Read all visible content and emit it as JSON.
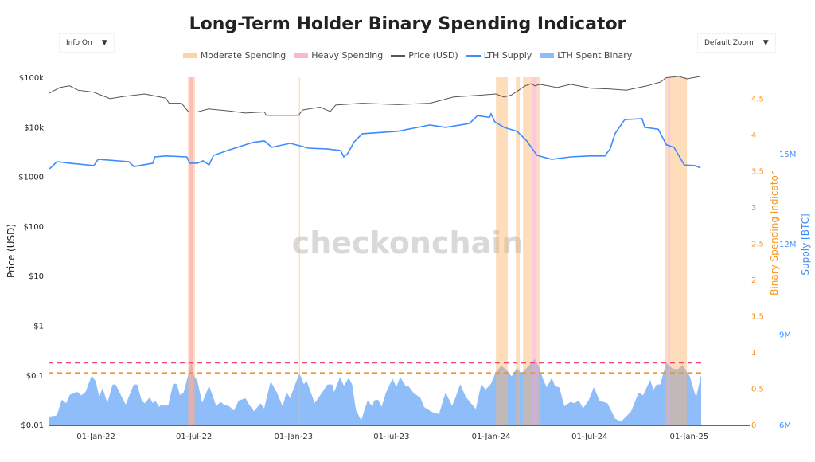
{
  "title": "Long-Term Holder Binary Spending Indicator",
  "controls": {
    "info_label": "Info On",
    "zoom_label": "Default Zoom",
    "caret": "▼"
  },
  "legend": [
    {
      "label": "Moderate Spending",
      "color": "#fcd3a5"
    },
    {
      "label": "Heavy Spending",
      "color": "#f9b8cb"
    },
    {
      "label": "Price (USD)",
      "color": "#555555"
    },
    {
      "label": "LTH Supply",
      "color": "#3d8bfd"
    },
    {
      "label": "LTH Spent Binary",
      "color": "#8fbdfa"
    }
  ],
  "watermark": "checkonchain",
  "chart_data": {
    "type": "line",
    "title": "Long-Term Holder Binary Spending Indicator",
    "x_unit": "days since 2022-01-01",
    "x_range": [
      -88,
      1118
    ],
    "x_ticks": [
      {
        "day": 0,
        "label": "01-Jan-22"
      },
      {
        "day": 181,
        "label": "01-Jul-22"
      },
      {
        "day": 365,
        "label": "01-Jan-23"
      },
      {
        "day": 546,
        "label": "01-Jul-23"
      },
      {
        "day": 730,
        "label": "01-Jan-24"
      },
      {
        "day": 912,
        "label": "01-Jul-24"
      },
      {
        "day": 1096,
        "label": "01-Jan-25"
      }
    ],
    "axes": {
      "price": {
        "label": "Price (USD)",
        "scale": "log",
        "range": [
          0.01,
          100000
        ],
        "ticks": [
          {
            "v": 100000,
            "label": "$100k"
          },
          {
            "v": 10000,
            "label": "$10k"
          },
          {
            "v": 1000,
            "label": "$1000"
          },
          {
            "v": 100,
            "label": "$100"
          },
          {
            "v": 10,
            "label": "$10"
          },
          {
            "v": 1,
            "label": "$1"
          },
          {
            "v": 0.1,
            "label": "$0.1"
          },
          {
            "v": 0.01,
            "label": "$0.01"
          }
        ]
      },
      "binary": {
        "label": "Binary Spending Indicator",
        "range": [
          0,
          4.8
        ],
        "color": "#f7941d",
        "ticks": [
          {
            "v": 0,
            "label": "0"
          },
          {
            "v": 0.5,
            "label": "0.5"
          },
          {
            "v": 1,
            "label": "1"
          },
          {
            "v": 1.5,
            "label": "1.5"
          },
          {
            "v": 2,
            "label": "2"
          },
          {
            "v": 2.5,
            "label": "2.5"
          },
          {
            "v": 3,
            "label": "3"
          },
          {
            "v": 3.5,
            "label": "3.5"
          },
          {
            "v": 4,
            "label": "4"
          },
          {
            "v": 4.5,
            "label": "4.5"
          }
        ]
      },
      "supply": {
        "label": "Supply [BTC]",
        "range_millions": [
          6,
          17.5
        ],
        "color": "#3d8bfd",
        "ticks": [
          {
            "v": 6,
            "label": "6M"
          },
          {
            "v": 9,
            "label": "9M"
          },
          {
            "v": 12,
            "label": "12M"
          },
          {
            "v": 15,
            "label": "15M"
          }
        ]
      }
    },
    "thresholds": [
      {
        "name": "heavy",
        "value": 0.855,
        "color": "#f0476e"
      },
      {
        "name": "moderate",
        "value": 0.71,
        "color": "#f7941d"
      }
    ],
    "moderate_spending_periods": [
      [
        170,
        183
      ],
      [
        375,
        377
      ],
      [
        739,
        761
      ],
      [
        776,
        783
      ],
      [
        789,
        806
      ],
      [
        815,
        820
      ],
      [
        1052,
        1056
      ],
      [
        1061,
        1092
      ]
    ],
    "heavy_spending_periods": [
      [
        173,
        179
      ],
      [
        806,
        815
      ],
      [
        1056,
        1061
      ]
    ],
    "price": [
      [
        -86,
        48000
      ],
      [
        -67,
        62000
      ],
      [
        -49,
        67000
      ],
      [
        -33,
        55000
      ],
      [
        -4,
        50000
      ],
      [
        26,
        37000
      ],
      [
        51,
        41000
      ],
      [
        90,
        46000
      ],
      [
        129,
        38000
      ],
      [
        135,
        30000
      ],
      [
        158,
        30000
      ],
      [
        171,
        20000
      ],
      [
        187,
        20000
      ],
      [
        208,
        23000
      ],
      [
        246,
        21000
      ],
      [
        276,
        19000
      ],
      [
        311,
        20000
      ],
      [
        315,
        17000
      ],
      [
        374,
        17000
      ],
      [
        382,
        22000
      ],
      [
        414,
        25000
      ],
      [
        433,
        20500
      ],
      [
        443,
        27500
      ],
      [
        492,
        30000
      ],
      [
        558,
        28000
      ],
      [
        617,
        30000
      ],
      [
        661,
        40000
      ],
      [
        705,
        43000
      ],
      [
        739,
        46000
      ],
      [
        754,
        40000
      ],
      [
        768,
        44000
      ],
      [
        778,
        52000
      ],
      [
        793,
        67000
      ],
      [
        804,
        74000
      ],
      [
        811,
        67000
      ],
      [
        820,
        72000
      ],
      [
        852,
        62000
      ],
      [
        877,
        72000
      ],
      [
        915,
        60000
      ],
      [
        950,
        58000
      ],
      [
        980,
        55000
      ],
      [
        1018,
        67000
      ],
      [
        1043,
        80000
      ],
      [
        1054,
        98000
      ],
      [
        1077,
        104000
      ],
      [
        1092,
        93000
      ],
      [
        1117,
        104000
      ]
    ],
    "lth_supply_millions": [
      [
        -86,
        14.49
      ],
      [
        -72,
        14.73
      ],
      [
        -48,
        14.68
      ],
      [
        -4,
        14.6
      ],
      [
        4,
        14.81
      ],
      [
        61,
        14.73
      ],
      [
        70,
        14.57
      ],
      [
        105,
        14.68
      ],
      [
        109,
        14.89
      ],
      [
        129,
        14.92
      ],
      [
        168,
        14.89
      ],
      [
        173,
        14.68
      ],
      [
        187,
        14.68
      ],
      [
        198,
        14.76
      ],
      [
        209,
        14.62
      ],
      [
        217,
        14.94
      ],
      [
        246,
        15.12
      ],
      [
        290,
        15.37
      ],
      [
        311,
        15.42
      ],
      [
        325,
        15.21
      ],
      [
        359,
        15.34
      ],
      [
        393,
        15.18
      ],
      [
        428,
        15.15
      ],
      [
        452,
        15.1
      ],
      [
        458,
        14.89
      ],
      [
        465,
        15.0
      ],
      [
        477,
        15.39
      ],
      [
        492,
        15.66
      ],
      [
        558,
        15.74
      ],
      [
        617,
        15.95
      ],
      [
        646,
        15.87
      ],
      [
        690,
        16.0
      ],
      [
        705,
        16.26
      ],
      [
        727,
        16.2
      ],
      [
        730,
        16.32
      ],
      [
        737,
        16.05
      ],
      [
        754,
        15.87
      ],
      [
        778,
        15.74
      ],
      [
        796,
        15.42
      ],
      [
        815,
        14.94
      ],
      [
        842,
        14.81
      ],
      [
        877,
        14.89
      ],
      [
        911,
        14.92
      ],
      [
        940,
        14.92
      ],
      [
        950,
        15.15
      ],
      [
        959,
        15.66
      ],
      [
        977,
        16.13
      ],
      [
        1009,
        16.16
      ],
      [
        1014,
        15.87
      ],
      [
        1039,
        15.81
      ],
      [
        1054,
        15.29
      ],
      [
        1068,
        15.21
      ],
      [
        1087,
        14.62
      ],
      [
        1107,
        14.6
      ],
      [
        1117,
        14.52
      ]
    ],
    "lth_spent_binary": [
      [
        -87,
        0.106
      ],
      [
        -72,
        0.124
      ],
      [
        -63,
        0.34
      ],
      [
        -55,
        0.29
      ],
      [
        -48,
        0.41
      ],
      [
        -35,
        0.45
      ],
      [
        -27,
        0.4
      ],
      [
        -19,
        0.45
      ],
      [
        -8,
        0.67
      ],
      [
        -1,
        0.6
      ],
      [
        6,
        0.37
      ],
      [
        12,
        0.5
      ],
      [
        21,
        0.29
      ],
      [
        31,
        0.55
      ],
      [
        36,
        0.55
      ],
      [
        46,
        0.4
      ],
      [
        55,
        0.27
      ],
      [
        70,
        0.55
      ],
      [
        76,
        0.55
      ],
      [
        84,
        0.33
      ],
      [
        90,
        0.29
      ],
      [
        99,
        0.37
      ],
      [
        105,
        0.29
      ],
      [
        109,
        0.33
      ],
      [
        117,
        0.24
      ],
      [
        120,
        0.27
      ],
      [
        134,
        0.27
      ],
      [
        143,
        0.56
      ],
      [
        149,
        0.56
      ],
      [
        155,
        0.4
      ],
      [
        162,
        0.44
      ],
      [
        171,
        0.69
      ],
      [
        176,
        0.85
      ],
      [
        181,
        0.67
      ],
      [
        187,
        0.6
      ],
      [
        196,
        0.29
      ],
      [
        209,
        0.53
      ],
      [
        222,
        0.25
      ],
      [
        230,
        0.31
      ],
      [
        237,
        0.27
      ],
      [
        246,
        0.25
      ],
      [
        255,
        0.19
      ],
      [
        264,
        0.33
      ],
      [
        276,
        0.36
      ],
      [
        283,
        0.27
      ],
      [
        292,
        0.18
      ],
      [
        304,
        0.29
      ],
      [
        311,
        0.22
      ],
      [
        323,
        0.59
      ],
      [
        334,
        0.44
      ],
      [
        345,
        0.24
      ],
      [
        352,
        0.44
      ],
      [
        359,
        0.36
      ],
      [
        367,
        0.53
      ],
      [
        376,
        0.7
      ],
      [
        384,
        0.55
      ],
      [
        389,
        0.6
      ],
      [
        404,
        0.29
      ],
      [
        418,
        0.44
      ],
      [
        428,
        0.55
      ],
      [
        436,
        0.55
      ],
      [
        440,
        0.44
      ],
      [
        451,
        0.65
      ],
      [
        458,
        0.53
      ],
      [
        467,
        0.64
      ],
      [
        473,
        0.55
      ],
      [
        480,
        0.2
      ],
      [
        490,
        0.05
      ],
      [
        502,
        0.33
      ],
      [
        511,
        0.24
      ],
      [
        514,
        0.33
      ],
      [
        521,
        0.34
      ],
      [
        528,
        0.24
      ],
      [
        536,
        0.44
      ],
      [
        548,
        0.63
      ],
      [
        555,
        0.51
      ],
      [
        562,
        0.65
      ],
      [
        573,
        0.52
      ],
      [
        577,
        0.53
      ],
      [
        587,
        0.43
      ],
      [
        599,
        0.37
      ],
      [
        606,
        0.24
      ],
      [
        621,
        0.17
      ],
      [
        634,
        0.14
      ],
      [
        646,
        0.44
      ],
      [
        658,
        0.25
      ],
      [
        665,
        0.38
      ],
      [
        673,
        0.55
      ],
      [
        683,
        0.38
      ],
      [
        693,
        0.29
      ],
      [
        702,
        0.21
      ],
      [
        712,
        0.55
      ],
      [
        720,
        0.48
      ],
      [
        730,
        0.56
      ],
      [
        739,
        0.72
      ],
      [
        749,
        0.81
      ],
      [
        759,
        0.75
      ],
      [
        768,
        0.66
      ],
      [
        778,
        0.78
      ],
      [
        786,
        0.7
      ],
      [
        796,
        0.78
      ],
      [
        811,
        0.9
      ],
      [
        818,
        0.8
      ],
      [
        827,
        0.6
      ],
      [
        833,
        0.51
      ],
      [
        842,
        0.64
      ],
      [
        848,
        0.53
      ],
      [
        856,
        0.51
      ],
      [
        865,
        0.25
      ],
      [
        877,
        0.31
      ],
      [
        884,
        0.29
      ],
      [
        892,
        0.33
      ],
      [
        900,
        0.22
      ],
      [
        911,
        0.34
      ],
      [
        920,
        0.51
      ],
      [
        930,
        0.33
      ],
      [
        945,
        0.29
      ],
      [
        959,
        0.08
      ],
      [
        970,
        0.04
      ],
      [
        980,
        0.11
      ],
      [
        989,
        0.18
      ],
      [
        1003,
        0.44
      ],
      [
        1011,
        0.4
      ],
      [
        1024,
        0.61
      ],
      [
        1030,
        0.47
      ],
      [
        1036,
        0.55
      ],
      [
        1043,
        0.55
      ],
      [
        1054,
        0.85
      ],
      [
        1065,
        0.77
      ],
      [
        1075,
        0.76
      ],
      [
        1084,
        0.82
      ],
      [
        1097,
        0.66
      ],
      [
        1109,
        0.36
      ],
      [
        1118,
        0.67
      ]
    ]
  }
}
